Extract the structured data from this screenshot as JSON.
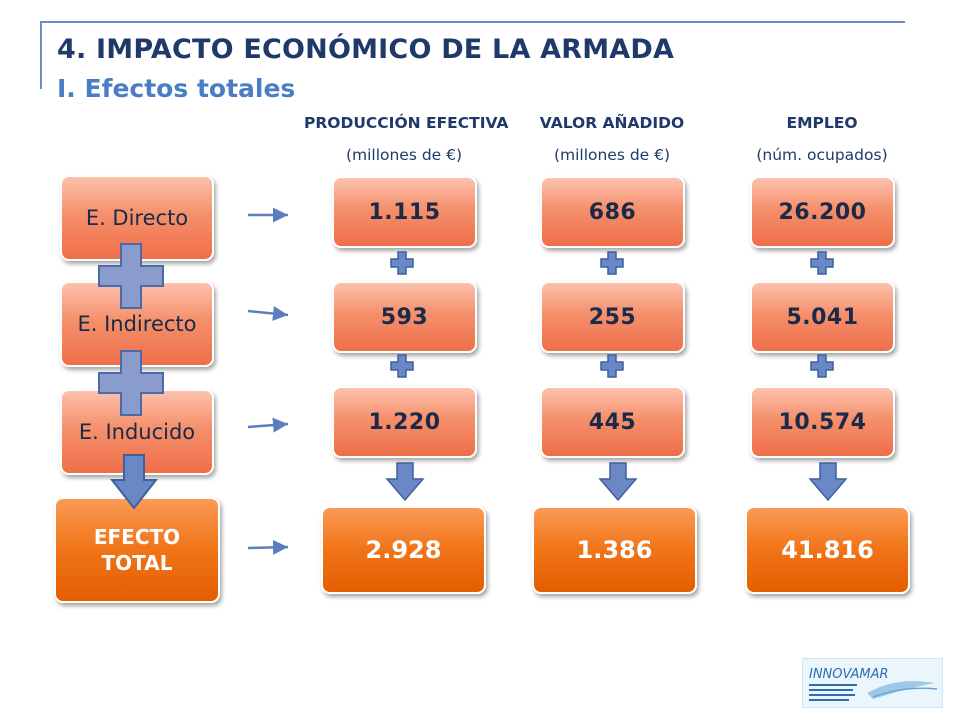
{
  "header": {
    "title": "4. IMPACTO ECONÓMICO DE LA ARMADA",
    "subtitle": "I. Efectos totales"
  },
  "columns": [
    {
      "heading": "PRODUCCIÓN EFECTIVA",
      "unit": "(millones de €)"
    },
    {
      "heading": "VALOR AÑADIDO",
      "unit": "(millones de €)"
    },
    {
      "heading": "EMPLEO",
      "unit": "(núm. ocupados)"
    }
  ],
  "rows": [
    {
      "label": "E. Directo"
    },
    {
      "label": "E. Indirecto"
    },
    {
      "label": "E. Inducido"
    },
    {
      "label": "EFECTO TOTAL"
    }
  ],
  "chart_data": {
    "type": "table",
    "title": "4. IMPACTO ECONÓMICO DE LA ARMADA",
    "subtitle": "I. Efectos totales",
    "columns": [
      "PRODUCCIÓN EFECTIVA (millones de €)",
      "VALOR AÑADIDO (millones de €)",
      "EMPLEO (núm. ocupados)"
    ],
    "rows": [
      {
        "label": "E. Directo",
        "values": [
          "1.115",
          "686",
          "26.200"
        ]
      },
      {
        "label": "E. Indirecto",
        "values": [
          "593",
          "255",
          "5.041"
        ]
      },
      {
        "label": "E. Inducido",
        "values": [
          "1.220",
          "445",
          "10.574"
        ]
      },
      {
        "label": "EFECTO TOTAL",
        "values": [
          "2.928",
          "1.386",
          "41.816"
        ]
      }
    ]
  },
  "logo": {
    "text": "INNOVAMAR"
  },
  "colors": {
    "title": "#1f3a6a",
    "subtitle": "#4a7ec4",
    "box": "#ee6f49",
    "total": "#e35e00",
    "connector": "#5a7ec0"
  }
}
